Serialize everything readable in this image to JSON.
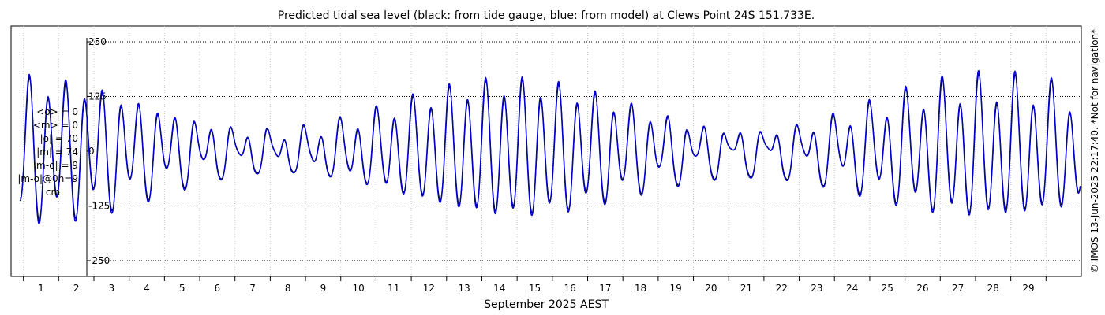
{
  "chart_data": {
    "type": "line",
    "title": "Predicted tidal sea level (black: from tide gauge, blue: from model) at Clews Point 24S 151.733E.",
    "xlabel": "September 2025 AEST",
    "ylabel": "",
    "x_ticks": [
      "1",
      "2",
      "3",
      "4",
      "5",
      "6",
      "7",
      "8",
      "9",
      "10",
      "11",
      "12",
      "13",
      "14",
      "15",
      "16",
      "17",
      "18",
      "19",
      "20",
      "21",
      "22",
      "23",
      "24",
      "25",
      "26",
      "27",
      "28",
      "29"
    ],
    "y_ticks": [
      250,
      125,
      0,
      -125,
      -250
    ],
    "y_tick_labels": [
      "250",
      "125",
      "0",
      "-125",
      "-250"
    ],
    "ylim": [
      -285,
      285
    ],
    "xlim_days": [
      -0.35,
      30.0
    ],
    "grid": true,
    "series": [
      {
        "name": "black: from tide gauge",
        "color": "#000000"
      },
      {
        "name": "blue: from model",
        "color": "#0000cc"
      }
    ],
    "stats": [
      "<o> = 0",
      "<m> = 0",
      "|o| = 70",
      "|m| = 74",
      "|m-o| = 9",
      "|m-o|@0h=9",
      "cm"
    ],
    "side_note": "© IMOS 13-Jun-2025 22:17:40. *Not for navigation*"
  }
}
